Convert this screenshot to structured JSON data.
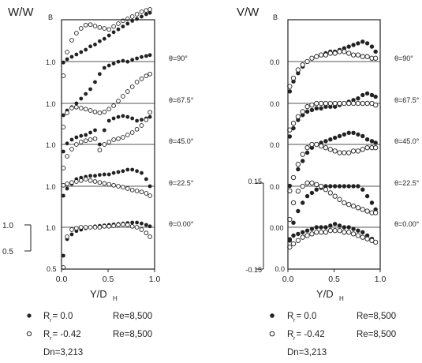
{
  "figure": {
    "left": {
      "ylabel_main": "W/W",
      "ylabel_sub": "B",
      "xlabel_main": "Y/D",
      "xlabel_sub": "H",
      "xticks": [
        "0.0",
        "0.5",
        "1.0"
      ],
      "panels": [
        {
          "label": "θ=90°",
          "baseline_tick": "1.0"
        },
        {
          "label": "θ=67.5°",
          "baseline_tick": "1.0"
        },
        {
          "label": "θ=45.0°",
          "baseline_tick": "1.0"
        },
        {
          "label": "θ=22.5°",
          "baseline_tick": "1.0"
        },
        {
          "label": "θ=0.00°",
          "baseline_tick": "1.0"
        }
      ],
      "scale_bar": {
        "top": "1.0",
        "bottom": "0.5",
        "bottom_axis_tick": "0.5"
      },
      "legend": [
        {
          "symbol": "filled",
          "text": "R = 0.0",
          "sub": "r",
          "re": "Re=8,500"
        },
        {
          "symbol": "open",
          "text": "R = -0.42",
          "sub": "r",
          "re": "Re=8,500"
        }
      ],
      "note": "Dn=3,213"
    },
    "right": {
      "ylabel_main": "V/W",
      "ylabel_sub": "B",
      "xlabel_main": "Y/D",
      "xlabel_sub": "H",
      "xticks": [
        "0.0",
        "0.5",
        "1.0"
      ],
      "panels": [
        {
          "label": "θ=90°",
          "baseline_tick": "0.0"
        },
        {
          "label": "θ=67.5°",
          "baseline_tick": "0.0"
        },
        {
          "label": "θ=45.0°",
          "baseline_tick": "0.0"
        },
        {
          "label": "θ=22.5°",
          "baseline_tick": "0.0"
        },
        {
          "label": "θ=0.00°",
          "baseline_tick": "0.00"
        }
      ],
      "scale_bar": {
        "top": "0.15",
        "mid": "0.00",
        "bottom": "-0.15",
        "bottom_axis_tick": "0.0"
      },
      "legend": [
        {
          "symbol": "filled",
          "text": "R = 0.0",
          "sub": "r",
          "re": "Re=8,500"
        },
        {
          "symbol": "open",
          "text": "R = -0.42",
          "sub": "r",
          "re": "Re=8,500"
        }
      ],
      "note": "Dn=3,213"
    }
  },
  "chart_data": [
    {
      "type": "scatter",
      "title": "",
      "xlabel": "Y/DH",
      "ylabel": "W/WB",
      "xlim": [
        0,
        1
      ],
      "x": [
        0.02,
        0.06,
        0.11,
        0.16,
        0.21,
        0.26,
        0.31,
        0.36,
        0.41,
        0.46,
        0.51,
        0.56,
        0.61,
        0.66,
        0.71,
        0.76,
        0.81,
        0.86,
        0.91,
        0.95
      ],
      "series": [
        {
          "name": "Rr=0.0, θ=90°",
          "offset": 4,
          "values": [
            -0.02,
            0.05,
            0.1,
            0.15,
            0.2,
            0.25,
            0.32,
            0.36,
            0.43,
            0.48,
            0.55,
            0.62,
            0.68,
            0.74,
            0.8,
            0.86,
            0.9,
            0.95,
            1.0,
            1.03
          ]
        },
        {
          "name": "Rr=-0.42, θ=90°",
          "offset": 4,
          "values": [
            -0.3,
            0.2,
            0.45,
            0.6,
            0.7,
            0.77,
            0.78,
            0.75,
            0.72,
            0.7,
            0.68,
            0.74,
            0.8,
            0.86,
            0.9,
            0.95,
            1.0,
            1.05,
            1.08,
            1.1
          ]
        },
        {
          "name": "Rr=0.0, θ=67.5°",
          "offset": 3,
          "values": [
            -0.25,
            -0.15,
            -0.08,
            0.0,
            0.1,
            0.2,
            0.3,
            0.45,
            0.62,
            0.75,
            0.8,
            0.84,
            0.88,
            0.9,
            0.88,
            0.92,
            0.95,
            0.98,
            1.0,
            1.02
          ]
        },
        {
          "name": "Rr=-0.42, θ=67.5°",
          "offset": 3,
          "values": [
            -0.5,
            -0.2,
            -0.1,
            -0.08,
            -0.1,
            -0.12,
            -0.15,
            -0.18,
            -0.2,
            -0.18,
            -0.12,
            -0.05,
            0.05,
            0.15,
            0.25,
            0.35,
            0.45,
            0.52,
            0.58,
            0.62
          ]
        },
        {
          "name": "Rr=0.0, θ=45.0°",
          "offset": 2,
          "values": [
            -0.15,
            0.02,
            0.1,
            0.15,
            0.18,
            0.2,
            0.25,
            0.3,
            0.0,
            0.3,
            0.5,
            0.55,
            0.58,
            0.6,
            0.58,
            0.55,
            0.5,
            0.52,
            0.55,
            0.58
          ]
        },
        {
          "name": "Rr=-0.42, θ=45.0°",
          "offset": 2,
          "values": [
            -0.5,
            -0.25,
            -0.1,
            0.0,
            0.05,
            0.08,
            0.1,
            0.12,
            -0.12,
            0.0,
            0.05,
            0.1,
            0.12,
            0.15,
            0.2,
            0.25,
            0.32,
            0.4,
            0.52,
            0.68
          ]
        },
        {
          "name": "Rr=0.0, θ=22.5°",
          "offset": 1,
          "values": [
            -0.2,
            -0.05,
            0.05,
            0.15,
            0.18,
            0.2,
            0.22,
            0.22,
            0.24,
            0.25,
            0.25,
            0.28,
            0.3,
            0.32,
            0.35,
            0.35,
            0.32,
            0.28,
            0.15,
            0.0
          ]
        },
        {
          "name": "Rr=-0.42, θ=22.5°",
          "offset": 1,
          "values": [
            0.02,
            0.05,
            0.08,
            0.1,
            0.12,
            0.15,
            0.12,
            0.1,
            0.08,
            0.06,
            0.04,
            0.02,
            0.0,
            -0.02,
            -0.05,
            -0.08,
            -0.1,
            -0.12,
            -0.15,
            -0.2
          ]
        },
        {
          "name": "Rr=0.0, θ=0.00°",
          "offset": 0,
          "values": [
            -0.6,
            -0.25,
            -0.15,
            -0.08,
            -0.05,
            -0.02,
            0.0,
            0.02,
            0.03,
            0.04,
            0.05,
            0.06,
            0.07,
            0.08,
            0.09,
            0.1,
            0.1,
            0.08,
            0.05,
            0.02
          ]
        },
        {
          "name": "Rr=-0.42, θ=0.00°",
          "offset": 0,
          "values": [
            -0.85,
            -0.2,
            -0.05,
            -0.02,
            0.0,
            0.0,
            0.0,
            0.0,
            0.0,
            0.02,
            0.02,
            0.03,
            0.05,
            0.06,
            0.05,
            0.02,
            0.0,
            -0.05,
            -0.12,
            -0.2
          ]
        }
      ]
    },
    {
      "type": "scatter",
      "title": "",
      "xlabel": "Y/DH",
      "ylabel": "V/WB",
      "xlim": [
        0,
        1
      ],
      "x": [
        0.02,
        0.06,
        0.11,
        0.16,
        0.21,
        0.26,
        0.31,
        0.36,
        0.41,
        0.46,
        0.51,
        0.56,
        0.61,
        0.66,
        0.71,
        0.76,
        0.81,
        0.86,
        0.91,
        0.95
      ],
      "series": [
        {
          "name": "Rr=0.0, θ=90°",
          "offset": 4,
          "values": [
            -0.18,
            -0.12,
            -0.07,
            -0.03,
            0.0,
            0.02,
            0.03,
            0.04,
            0.05,
            0.06,
            0.06,
            0.07,
            0.08,
            0.09,
            0.1,
            0.11,
            0.12,
            0.11,
            0.09,
            0.06
          ]
        },
        {
          "name": "Rr=-0.42, θ=90°",
          "offset": 4,
          "values": [
            -0.15,
            -0.1,
            -0.05,
            -0.02,
            0.0,
            0.02,
            0.03,
            0.04,
            0.04,
            0.05,
            0.05,
            0.06,
            0.06,
            0.05,
            0.04,
            0.04,
            0.03,
            0.03,
            0.02,
            0.02
          ]
        },
        {
          "name": "Rr=0.0, θ=67.5°",
          "offset": 3,
          "values": [
            -0.2,
            -0.15,
            -0.1,
            -0.07,
            -0.05,
            -0.04,
            -0.03,
            -0.03,
            -0.02,
            -0.02,
            -0.02,
            -0.01,
            0.0,
            0.01,
            0.02,
            0.03,
            0.05,
            0.06,
            0.05,
            0.04
          ]
        },
        {
          "name": "Rr=-0.42, θ=67.5°",
          "offset": 3,
          "values": [
            -0.16,
            -0.12,
            -0.08,
            -0.05,
            -0.02,
            -0.01,
            0.0,
            0.0,
            0.0,
            0.0,
            0.0,
            0.0,
            0.0,
            0.0,
            0.0,
            0.0,
            0.0,
            0.0,
            0.0,
            -0.01
          ]
        },
        {
          "name": "Rr=0.0, θ=45.0°",
          "offset": 2,
          "values": [
            -0.25,
            -0.2,
            -0.15,
            -0.1,
            -0.05,
            -0.02,
            0.0,
            0.01,
            0.02,
            0.03,
            0.04,
            0.05,
            0.06,
            0.07,
            0.07,
            0.06,
            0.05,
            0.03,
            0.02,
            0.01
          ]
        },
        {
          "name": "Rr=-0.42, θ=45.0°",
          "offset": 2,
          "values": [
            -0.28,
            -0.2,
            -0.12,
            -0.06,
            -0.02,
            0.0,
            0.0,
            -0.01,
            -0.02,
            -0.03,
            -0.04,
            -0.05,
            -0.05,
            -0.05,
            -0.04,
            -0.04,
            -0.03,
            -0.02,
            -0.02,
            -0.02
          ]
        },
        {
          "name": "Rr=0.0, θ=22.5°",
          "offset": 1,
          "values": [
            -0.32,
            -0.22,
            -0.15,
            -0.1,
            -0.06,
            -0.04,
            -0.02,
            -0.01,
            0.0,
            0.0,
            0.0,
            0.0,
            0.0,
            0.0,
            0.0,
            0.0,
            -0.02,
            -0.06,
            -0.1,
            -0.14
          ]
        },
        {
          "name": "Rr=-0.42, θ=22.5°",
          "offset": 1,
          "values": [
            -0.2,
            -0.1,
            -0.03,
            0.0,
            0.02,
            0.02,
            0.01,
            0.0,
            -0.02,
            -0.04,
            -0.06,
            -0.08,
            -0.1,
            -0.11,
            -0.12,
            -0.13,
            -0.14,
            -0.15,
            -0.16,
            -0.16
          ]
        },
        {
          "name": "Rr=0.0, θ=0.00°",
          "offset": 0,
          "values": [
            -0.08,
            -0.05,
            -0.04,
            -0.03,
            -0.02,
            -0.01,
            0.0,
            0.0,
            0.0,
            0.01,
            0.02,
            0.01,
            0.0,
            0.0,
            -0.01,
            -0.02,
            -0.03,
            -0.05,
            -0.07,
            -0.09
          ]
        },
        {
          "name": "Rr=-0.42, θ=0.00°",
          "offset": 0,
          "values": [
            -0.12,
            -0.1,
            -0.08,
            -0.06,
            -0.05,
            -0.04,
            -0.03,
            -0.03,
            -0.03,
            -0.02,
            -0.02,
            -0.02,
            -0.03,
            -0.03,
            -0.04,
            -0.05,
            -0.06,
            -0.07,
            -0.08,
            -0.09
          ]
        }
      ]
    }
  ]
}
